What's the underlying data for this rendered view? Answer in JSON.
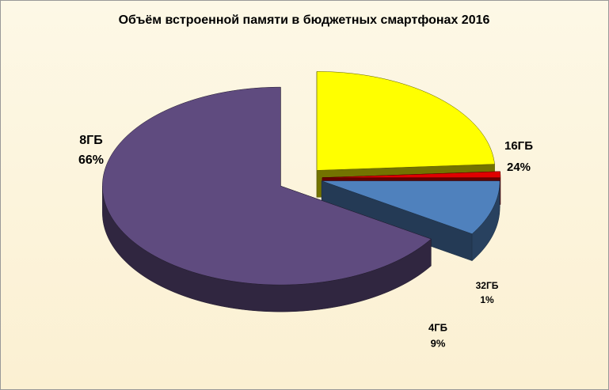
{
  "chart_data": {
    "type": "pie3d",
    "title": "Объём встроенной памяти в бюджетных смартфонах 2016",
    "categories": [
      "16ГБ",
      "32ГБ",
      "4ГБ",
      "8ГБ"
    ],
    "values": [
      24,
      1,
      9,
      66
    ],
    "value_labels": [
      "24%",
      "1%",
      "9%",
      "66%"
    ],
    "colors": [
      "#ffff00",
      "#e00000",
      "#4f81bd",
      "#5f4b7f"
    ]
  }
}
